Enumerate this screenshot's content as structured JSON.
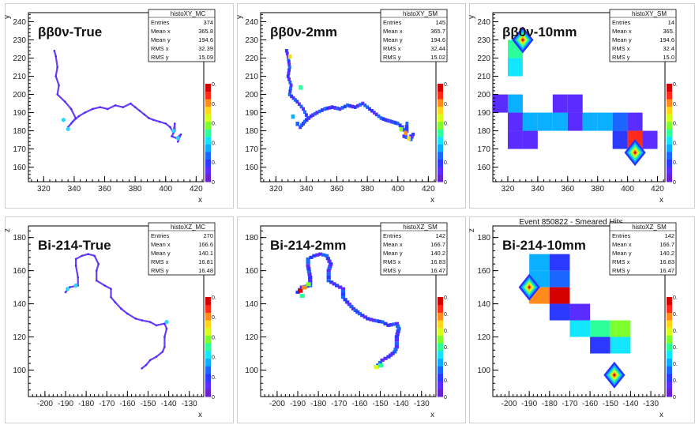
{
  "palette": [
    "#6a1fd0",
    "#5a2cff",
    "#2b38ff",
    "#1a66ff",
    "#0ab0ff",
    "#15e6ff",
    "#2dff9a",
    "#7dff2e",
    "#d8ff19",
    "#ffd61a",
    "#ff8c1a",
    "#ff2a1a",
    "#d40000"
  ],
  "chart_data": [
    {
      "type": "heatmap",
      "id": "xy_true",
      "title": "ββ0ν-True",
      "subtitle": "",
      "xlabel": "x",
      "ylabel": "y",
      "xlim": [
        310,
        425
      ],
      "ylim": [
        152,
        245
      ],
      "xticks": [
        "320",
        "340",
        "360",
        "380",
        "400",
        "420"
      ],
      "yticks": [
        "160",
        "170",
        "180",
        "190",
        "200",
        "210",
        "220",
        "230",
        "240"
      ],
      "stats": {
        "name": "histoXY_MC",
        "rows": [
          [
            "Entries",
            "374"
          ],
          [
            "Mean x",
            "365.8"
          ],
          [
            "Mean y",
            "194.6"
          ],
          [
            "RMS x",
            "32.39"
          ],
          [
            "RMS y",
            "15.09"
          ]
        ]
      },
      "palette_labels": [
        "0",
        "0.",
        "0.",
        "0.",
        "0.",
        "0."
      ],
      "render": "line",
      "points": [
        [
          327,
          224
        ],
        [
          328,
          221
        ],
        [
          329,
          215
        ],
        [
          328,
          210
        ],
        [
          330,
          205
        ],
        [
          329,
          200
        ],
        [
          334,
          196
        ],
        [
          338,
          192
        ],
        [
          341,
          187
        ],
        [
          338,
          184
        ],
        [
          336,
          182
        ],
        [
          339,
          185
        ],
        [
          343,
          188
        ],
        [
          347,
          190
        ],
        [
          352,
          192
        ],
        [
          357,
          193
        ],
        [
          362,
          192
        ],
        [
          367,
          194
        ],
        [
          372,
          193
        ],
        [
          377,
          195
        ],
        [
          380,
          193
        ],
        [
          383,
          191
        ],
        [
          386,
          189
        ],
        [
          389,
          187
        ],
        [
          392,
          186
        ],
        [
          396,
          185
        ],
        [
          400,
          184
        ],
        [
          403,
          182
        ],
        [
          405,
          179
        ],
        [
          406,
          184
        ],
        [
          406,
          180
        ],
        [
          404,
          177
        ],
        [
          407,
          176
        ],
        [
          410,
          178
        ],
        [
          408,
          174
        ]
      ],
      "blobs": [
        [
          333,
          186
        ],
        [
          336,
          181
        ],
        [
          405,
          180
        ],
        [
          408,
          176
        ]
      ]
    },
    {
      "type": "heatmap",
      "id": "xy_2mm",
      "title": "ββ0ν-2mm",
      "subtitle": "",
      "xlabel": "x",
      "ylabel": "y",
      "xlim": [
        310,
        425
      ],
      "ylim": [
        152,
        245
      ],
      "xticks": [
        "320",
        "340",
        "360",
        "380",
        "400",
        "420"
      ],
      "yticks": [
        "160",
        "170",
        "180",
        "190",
        "200",
        "210",
        "220",
        "230",
        "240"
      ],
      "stats": {
        "name": "histoXY_SM",
        "rows": [
          [
            "Entries",
            "145"
          ],
          [
            "Mean x",
            "365.7"
          ],
          [
            "Mean y",
            "194.6"
          ],
          [
            "RMS x",
            "32.44"
          ],
          [
            "RMS y",
            "15.02"
          ]
        ]
      },
      "palette_labels": [
        "0",
        "0.",
        "0.",
        "0.",
        "0.",
        "0."
      ],
      "render": "pixels",
      "cell": 2,
      "points": [
        [
          327,
          224
        ],
        [
          328,
          221
        ],
        [
          329,
          215
        ],
        [
          328,
          210
        ],
        [
          330,
          205
        ],
        [
          329,
          200
        ],
        [
          334,
          196
        ],
        [
          338,
          192
        ],
        [
          341,
          187
        ],
        [
          338,
          184
        ],
        [
          336,
          182
        ],
        [
          339,
          185
        ],
        [
          343,
          188
        ],
        [
          347,
          190
        ],
        [
          352,
          192
        ],
        [
          357,
          193
        ],
        [
          362,
          192
        ],
        [
          367,
          194
        ],
        [
          372,
          193
        ],
        [
          377,
          195
        ],
        [
          380,
          193
        ],
        [
          383,
          191
        ],
        [
          386,
          189
        ],
        [
          389,
          187
        ],
        [
          392,
          186
        ],
        [
          396,
          185
        ],
        [
          400,
          184
        ],
        [
          403,
          182
        ],
        [
          405,
          179
        ],
        [
          406,
          184
        ],
        [
          406,
          180
        ],
        [
          404,
          177
        ],
        [
          407,
          176
        ],
        [
          410,
          178
        ],
        [
          408,
          174
        ]
      ],
      "hot": [
        [
          329,
          221,
          9
        ],
        [
          336,
          204,
          6
        ],
        [
          405,
          179,
          10
        ],
        [
          402,
          181,
          7
        ],
        [
          407,
          176,
          9
        ],
        [
          331,
          188,
          4
        ],
        [
          334,
          184,
          3
        ]
      ]
    },
    {
      "type": "heatmap",
      "id": "xy_10mm",
      "title": "ββ0ν-10mm",
      "subtitle": "",
      "xlabel": "x",
      "ylabel": "y",
      "xlim": [
        310,
        425
      ],
      "ylim": [
        152,
        245
      ],
      "xticks": [
        "320",
        "340",
        "360",
        "380",
        "400",
        "420"
      ],
      "yticks": [
        "160",
        "170",
        "180",
        "190",
        "200",
        "210",
        "220",
        "230",
        "240"
      ],
      "stats": {
        "name": "histoXY_SM",
        "rows": [
          [
            "Entries",
            "14"
          ],
          [
            "Mean x",
            "365."
          ],
          [
            "Mean y",
            "194.6"
          ],
          [
            "RMS x",
            "32.4"
          ],
          [
            "RMS y",
            "15.0"
          ]
        ]
      },
      "palette_labels": [
        "0",
        "0.",
        "0.",
        "0.",
        "0.",
        "0."
      ],
      "render": "cells",
      "cw": 10,
      "ch": 10,
      "cells": [
        [
          325,
          225,
          6
        ],
        [
          325,
          215,
          5
        ],
        [
          315,
          195,
          1
        ],
        [
          325,
          195,
          4
        ],
        [
          325,
          185,
          1
        ],
        [
          325,
          175,
          1
        ],
        [
          335,
          185,
          4
        ],
        [
          335,
          175,
          1
        ],
        [
          345,
          185,
          4
        ],
        [
          355,
          185,
          4
        ],
        [
          355,
          195,
          1
        ],
        [
          365,
          195,
          1
        ],
        [
          365,
          185,
          1
        ],
        [
          375,
          185,
          4
        ],
        [
          385,
          185,
          4
        ],
        [
          395,
          185,
          3
        ],
        [
          395,
          175,
          2
        ],
        [
          405,
          175,
          11
        ],
        [
          405,
          185,
          1
        ],
        [
          415,
          175,
          1
        ]
      ],
      "markers": [
        [
          330,
          230
        ],
        [
          405,
          168
        ]
      ]
    },
    {
      "type": "heatmap",
      "id": "xz_true",
      "title": "Bi-214-True",
      "subtitle": "",
      "xlabel": "x",
      "ylabel": "z",
      "xlim": [
        -208,
        -123
      ],
      "ylim": [
        84,
        187
      ],
      "xticks": [
        "-200",
        "-190",
        "-180",
        "-170",
        "-160",
        "-150",
        "-140",
        "-130"
      ],
      "yticks": [
        "100",
        "120",
        "140",
        "160",
        "180"
      ],
      "stats": {
        "name": "histoXZ_MC",
        "rows": [
          [
            "Entries",
            "270"
          ],
          [
            "Mean x",
            "166.6"
          ],
          [
            "Mean y",
            "140.1"
          ],
          [
            "RMS x",
            "16.81"
          ],
          [
            "RMS y",
            "16.48"
          ]
        ]
      },
      "palette_labels": [
        "0",
        "0.",
        "0.",
        "0.",
        "0.",
        "0."
      ],
      "render": "line",
      "points": [
        [
          -190,
          147
        ],
        [
          -188,
          150
        ],
        [
          -184,
          151
        ],
        [
          -184,
          156
        ],
        [
          -185,
          163
        ],
        [
          -185,
          167
        ],
        [
          -182,
          169
        ],
        [
          -179,
          170
        ],
        [
          -176,
          169
        ],
        [
          -174,
          164
        ],
        [
          -175,
          160
        ],
        [
          -175,
          154
        ],
        [
          -171,
          151
        ],
        [
          -168,
          149
        ],
        [
          -168,
          144
        ],
        [
          -166,
          141
        ],
        [
          -163,
          137
        ],
        [
          -160,
          134
        ],
        [
          -156,
          131
        ],
        [
          -153,
          130
        ],
        [
          -149,
          129
        ],
        [
          -146,
          127
        ],
        [
          -142,
          128
        ],
        [
          -141,
          125
        ],
        [
          -142,
          120
        ],
        [
          -142,
          114
        ],
        [
          -143,
          111
        ],
        [
          -146,
          108
        ],
        [
          -149,
          106
        ],
        [
          -151,
          103
        ],
        [
          -153,
          101
        ]
      ],
      "blobs": [
        [
          -189,
          149
        ],
        [
          -185,
          151
        ],
        [
          -141,
          129
        ]
      ]
    },
    {
      "type": "heatmap",
      "id": "xz_2mm",
      "title": "Bi-214-2mm",
      "subtitle": "",
      "xlabel": "x",
      "ylabel": "",
      "xlim": [
        -208,
        -123
      ],
      "ylim": [
        84,
        187
      ],
      "xticks": [
        "-200",
        "-190",
        "-180",
        "-170",
        "-160",
        "-150",
        "-140",
        "-130"
      ],
      "yticks": [
        "100",
        "120",
        "140",
        "160",
        "180"
      ],
      "stats": {
        "name": "histoXZ_SM",
        "rows": [
          [
            "Entries",
            "142"
          ],
          [
            "Mean x",
            "166.7"
          ],
          [
            "Mean y",
            "140.2"
          ],
          [
            "RMS x",
            "16.83"
          ],
          [
            "RMS y",
            "16.47"
          ]
        ]
      },
      "palette_labels": [
        "0",
        "0.",
        "0.",
        "0.",
        "0.",
        "0.",
        "0."
      ],
      "render": "pixels",
      "cell": 2,
      "points": [
        [
          -190,
          147
        ],
        [
          -188,
          150
        ],
        [
          -184,
          151
        ],
        [
          -184,
          156
        ],
        [
          -185,
          163
        ],
        [
          -185,
          167
        ],
        [
          -182,
          169
        ],
        [
          -179,
          170
        ],
        [
          -176,
          169
        ],
        [
          -174,
          164
        ],
        [
          -175,
          160
        ],
        [
          -175,
          154
        ],
        [
          -171,
          151
        ],
        [
          -168,
          149
        ],
        [
          -168,
          144
        ],
        [
          -166,
          141
        ],
        [
          -163,
          137
        ],
        [
          -160,
          134
        ],
        [
          -156,
          131
        ],
        [
          -153,
          130
        ],
        [
          -149,
          129
        ],
        [
          -146,
          127
        ],
        [
          -142,
          128
        ],
        [
          -141,
          125
        ],
        [
          -142,
          120
        ],
        [
          -142,
          114
        ],
        [
          -143,
          111
        ],
        [
          -146,
          108
        ],
        [
          -149,
          106
        ],
        [
          -151,
          103
        ],
        [
          -153,
          101
        ]
      ],
      "hot": [
        [
          -189,
          148,
          12
        ],
        [
          -187,
          150,
          10
        ],
        [
          -185,
          152,
          7
        ],
        [
          -188,
          145,
          6
        ],
        [
          -152,
          102,
          8
        ],
        [
          -150,
          103,
          6
        ]
      ]
    },
    {
      "type": "heatmap",
      "id": "xz_10mm",
      "title": "Bi-214-10mm",
      "subtitle": "Event 850822 - Smeared Hits",
      "xlabel": "x",
      "ylabel": "z",
      "xlim": [
        -208,
        -123
      ],
      "ylim": [
        84,
        187
      ],
      "xticks": [
        "-200",
        "-190",
        "-180",
        "-170",
        "-160",
        "-150",
        "-140",
        "-130"
      ],
      "yticks": [
        "100",
        "120",
        "140",
        "160",
        "180"
      ],
      "stats": {
        "name": "histoXZ_SM",
        "rows": [
          [
            "Entries",
            "142"
          ],
          [
            "Mean x",
            "166.7"
          ],
          [
            "Mean y",
            "140.2"
          ],
          [
            "RMS x",
            "16.83"
          ],
          [
            "RMS y",
            "16.47"
          ]
        ]
      },
      "palette_labels": [
        "0",
        "0.",
        "0.",
        "0.",
        "0.",
        "0.",
        "0."
      ],
      "render": "cells",
      "cw": 10,
      "ch": 10,
      "cells": [
        [
          -185,
          165,
          4
        ],
        [
          -175,
          165,
          2
        ],
        [
          -185,
          155,
          4
        ],
        [
          -175,
          155,
          3
        ],
        [
          -185,
          145,
          10
        ],
        [
          -175,
          145,
          12
        ],
        [
          -175,
          135,
          2
        ],
        [
          -165,
          135,
          1
        ],
        [
          -155,
          125,
          6
        ],
        [
          -145,
          125,
          7
        ],
        [
          -165,
          125,
          5
        ],
        [
          -155,
          115,
          2
        ],
        [
          -145,
          115,
          5
        ]
      ],
      "markers": [
        [
          -190,
          150
        ],
        [
          -148,
          97
        ]
      ]
    }
  ]
}
